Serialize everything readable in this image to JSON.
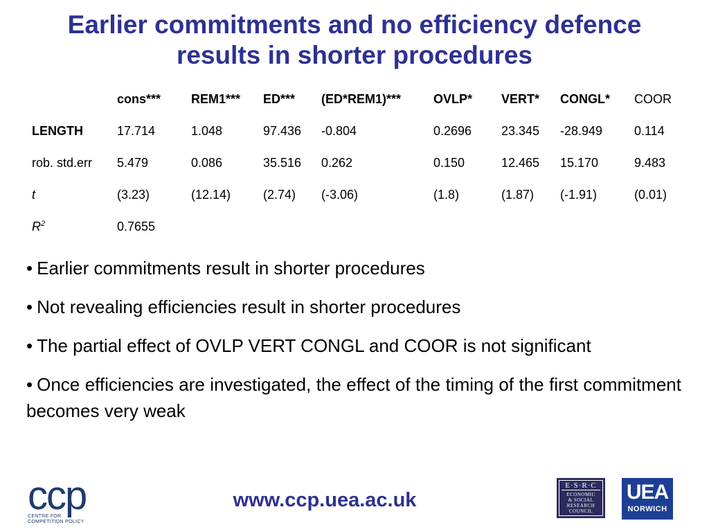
{
  "title_line1": "Earlier commitments and no efficiency defence",
  "title_line2": "results in shorter procedures",
  "table": {
    "headers": [
      "",
      "cons***",
      "REM1***",
      "ED***",
      "(ED*REM1)***",
      "OVLP*",
      "VERT*",
      "CONGL*",
      "COOR"
    ],
    "rows": [
      {
        "label": "LENGTH",
        "values": [
          "17.714",
          "1.048",
          "97.436",
          "-0.804",
          "0.2696",
          "23.345",
          "-28.949",
          "0.114"
        ]
      },
      {
        "label": "rob. std.err",
        "values": [
          "5.479",
          "0.086",
          "35.516",
          "0.262",
          "0.150",
          "12.465",
          "15.170",
          "9.483"
        ]
      },
      {
        "label": "t",
        "values": [
          "(3.23)",
          "(12.14)",
          "(2.74)",
          "(-3.06)",
          "(1.8)",
          "(1.87)",
          "(-1.91)",
          "(0.01)"
        ]
      },
      {
        "label": "R",
        "label_sup": "2",
        "values": [
          "0.7655",
          "",
          "",
          "",
          "",
          "",
          "",
          ""
        ]
      }
    ]
  },
  "bullets": [
    "Earlier commitments result in shorter procedures",
    "Not revealing efficiencies result in shorter procedures",
    "The partial effect of OVLP VERT CONGL and COOR is not significant",
    "Once efficiencies are investigated, the effect of the timing of the first commitment becomes very weak"
  ],
  "bullet_glyph": "•",
  "footer_url": "www.ccp.uea.ac.uk",
  "logos": {
    "ccp_mark": "ccp",
    "ccp_sub1": "CENTRE FOR",
    "ccp_sub2": "COMPETITION POLICY",
    "esrc_top": "E·S·R·C",
    "esrc_lines": [
      "ECONOMIC",
      "& SOCIAL",
      "RESEARCH",
      "COUNCIL"
    ],
    "uea_big": "UEA",
    "uea_small": "NORWICH"
  },
  "colors": {
    "title": "#2e3192",
    "uea": "#1c3f94",
    "esrc": "#2b2b5e"
  }
}
